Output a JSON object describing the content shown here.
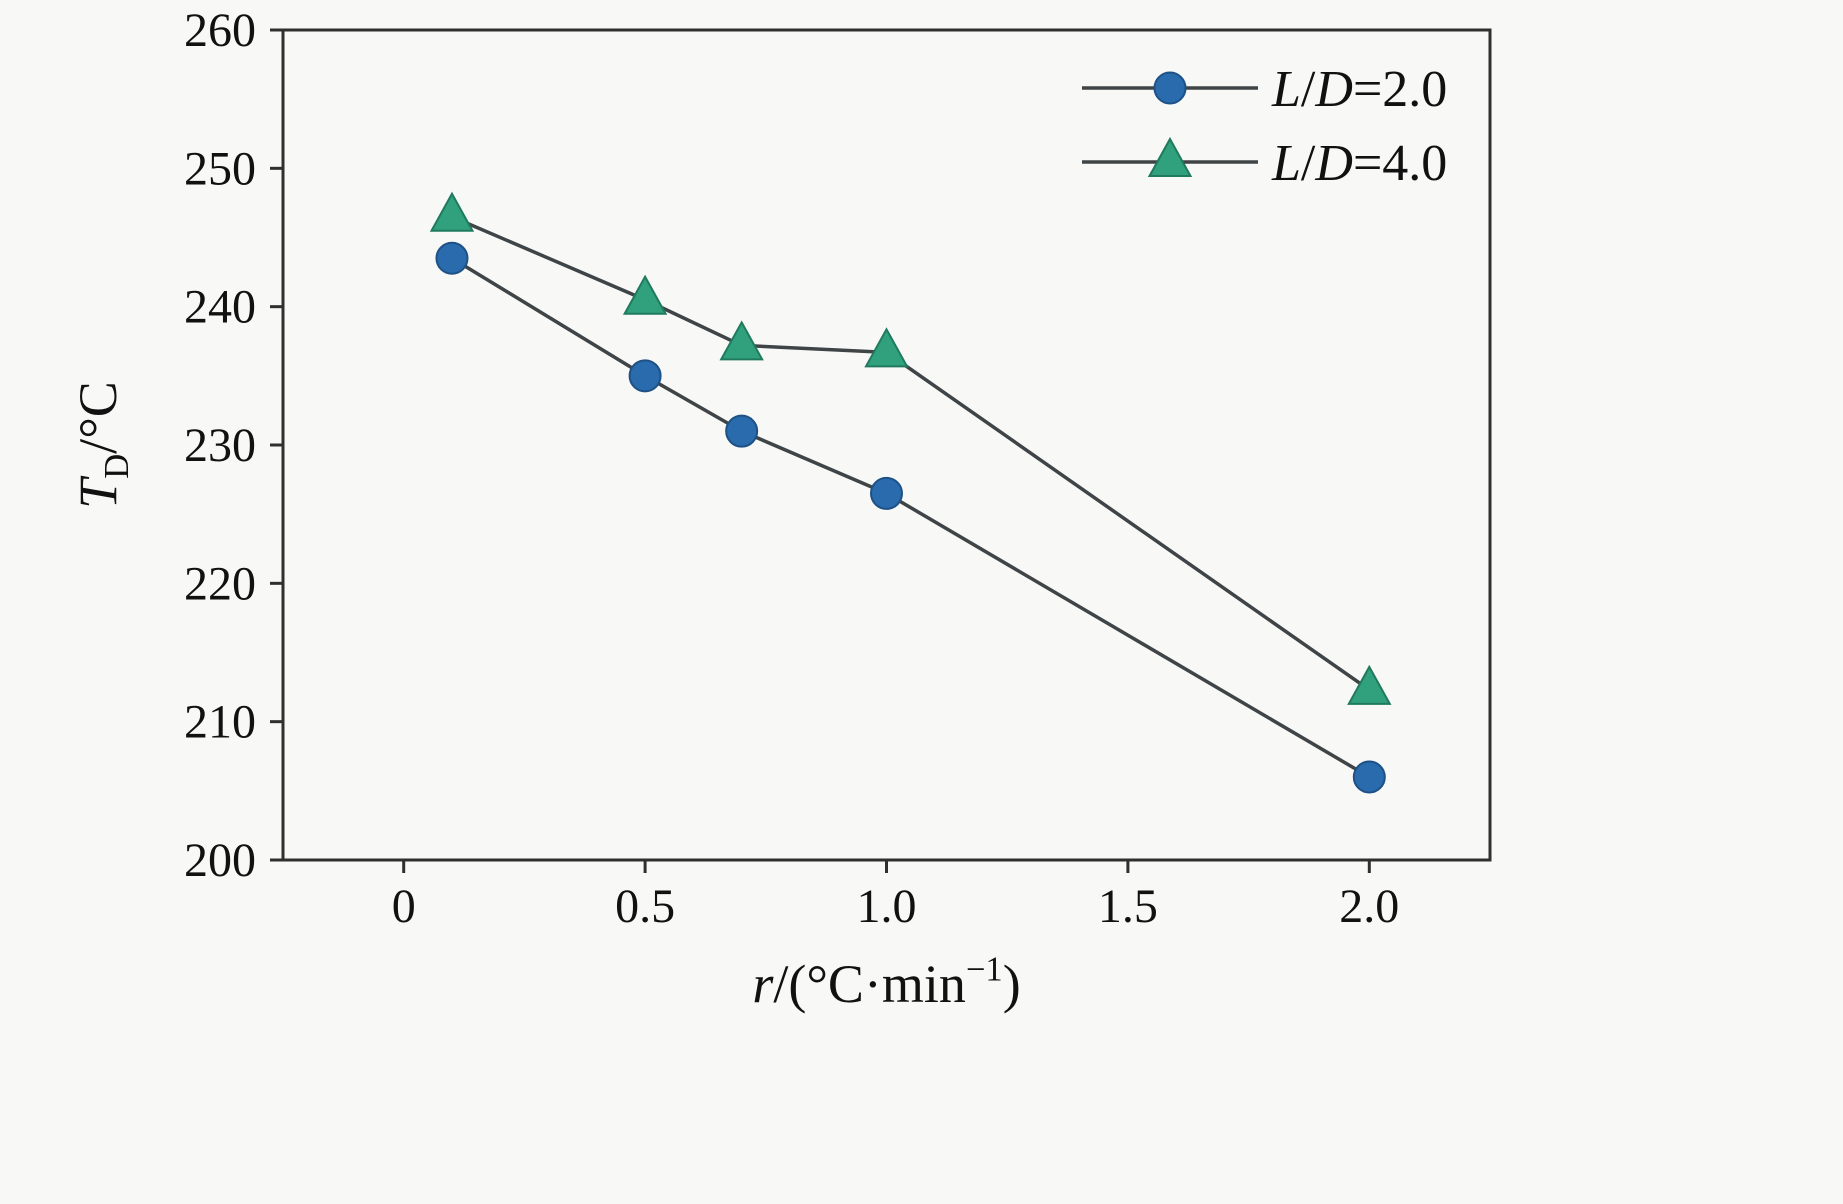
{
  "figure": {
    "background": "#f8f8f7"
  },
  "chart_data": {
    "type": "line",
    "title": "",
    "xlabel": "r/(°C·min⁻¹)",
    "ylabel": "T_D/°C",
    "xlabel_parts": [
      {
        "t": "r",
        "style": "italic"
      },
      {
        "t": "/(°C·min",
        "style": "normal"
      },
      {
        "t": "−1",
        "style": "sup"
      },
      {
        "t": ")",
        "style": "normal"
      }
    ],
    "ylabel_parts": [
      {
        "t": "T",
        "style": "italic"
      },
      {
        "t": "D",
        "style": "sub"
      },
      {
        "t": "/°C",
        "style": "normal"
      }
    ],
    "xlim": [
      -0.25,
      2.25
    ],
    "ylim": [
      200,
      260
    ],
    "grid": false,
    "legend_position": "top-right",
    "x_ticks": [
      {
        "v": 0,
        "label": "0"
      },
      {
        "v": 0.5,
        "label": "0.5"
      },
      {
        "v": 1.0,
        "label": "1.0"
      },
      {
        "v": 1.5,
        "label": "1.5"
      },
      {
        "v": 2.0,
        "label": "2.0"
      }
    ],
    "y_ticks": [
      {
        "v": 200,
        "label": "200"
      },
      {
        "v": 210,
        "label": "210"
      },
      {
        "v": 220,
        "label": "220"
      },
      {
        "v": 230,
        "label": "230"
      },
      {
        "v": 240,
        "label": "240"
      },
      {
        "v": 250,
        "label": "250"
      },
      {
        "v": 260,
        "label": "260"
      }
    ],
    "series": [
      {
        "name": "L/D=2.0",
        "name_parts": [
          {
            "t": "L",
            "style": "italic"
          },
          {
            "t": "/",
            "style": "normal"
          },
          {
            "t": "D",
            "style": "italic"
          },
          {
            "t": "=2.0",
            "style": "normal"
          }
        ],
        "marker": "circle",
        "marker_color": "#2a6bad",
        "marker_edge": "#1e5185",
        "line_color": "#3f4447",
        "x": [
          0.1,
          0.5,
          0.7,
          1.0,
          2.0
        ],
        "y": [
          243.5,
          235.0,
          231.0,
          226.5,
          206.0
        ]
      },
      {
        "name": "L/D=4.0",
        "name_parts": [
          {
            "t": "L",
            "style": "italic"
          },
          {
            "t": "/",
            "style": "normal"
          },
          {
            "t": "D",
            "style": "italic"
          },
          {
            "t": "=4.0",
            "style": "normal"
          }
        ],
        "marker": "triangle",
        "marker_color": "#31a07d",
        "marker_edge": "#1f7a5e",
        "line_color": "#3f4447",
        "x": [
          0.1,
          0.5,
          0.7,
          1.0,
          2.0
        ],
        "y": [
          246.5,
          240.5,
          237.2,
          236.7,
          212.3
        ]
      }
    ],
    "colors": {
      "axis": "#2f2f2f",
      "text": "#111111"
    }
  }
}
